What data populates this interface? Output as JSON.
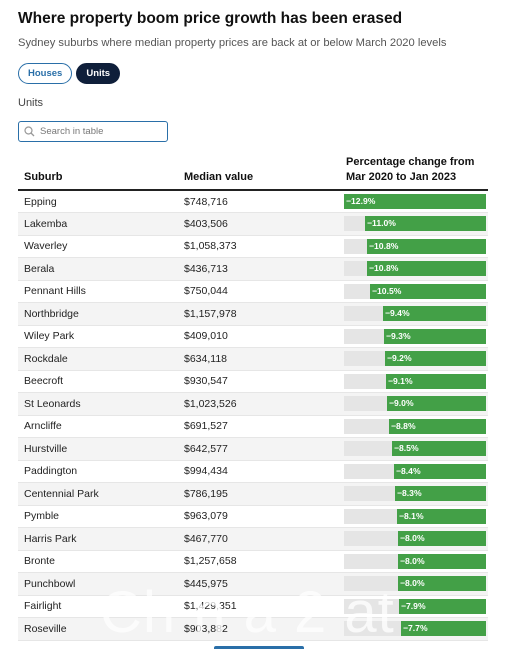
{
  "title": "Where property boom price growth has been erased",
  "subtitle": "Sydney suburbs where median property prices are back at or below March 2020 levels",
  "toggles": [
    {
      "label": "Houses",
      "active": false
    },
    {
      "label": "Units",
      "active": true
    }
  ],
  "section_label": "Units",
  "search": {
    "placeholder": "Search in table",
    "value": "",
    "icon": "search-icon"
  },
  "table": {
    "headers": {
      "suburb": "Suburb",
      "median": "Median value",
      "change": "Percentage change from Mar 2020 to Jan 2023"
    },
    "rows": [
      {
        "suburb": "Epping",
        "median": "$748,716",
        "change_label": "−12.9%",
        "change": -12.9
      },
      {
        "suburb": "Lakemba",
        "median": "$403,506",
        "change_label": "−11.0%",
        "change": -11.0
      },
      {
        "suburb": "Waverley",
        "median": "$1,058,373",
        "change_label": "−10.8%",
        "change": -10.8
      },
      {
        "suburb": "Berala",
        "median": "$436,713",
        "change_label": "−10.8%",
        "change": -10.8
      },
      {
        "suburb": "Pennant Hills",
        "median": "$750,044",
        "change_label": "−10.5%",
        "change": -10.5
      },
      {
        "suburb": "Northbridge",
        "median": "$1,157,978",
        "change_label": "−9.4%",
        "change": -9.4
      },
      {
        "suburb": "Wiley Park",
        "median": "$409,010",
        "change_label": "−9.3%",
        "change": -9.3
      },
      {
        "suburb": "Rockdale",
        "median": "$634,118",
        "change_label": "−9.2%",
        "change": -9.2
      },
      {
        "suburb": "Beecroft",
        "median": "$930,547",
        "change_label": "−9.1%",
        "change": -9.1
      },
      {
        "suburb": "St Leonards",
        "median": "$1,023,526",
        "change_label": "−9.0%",
        "change": -9.0
      },
      {
        "suburb": "Arncliffe",
        "median": "$691,527",
        "change_label": "−8.8%",
        "change": -8.8
      },
      {
        "suburb": "Hurstville",
        "median": "$642,577",
        "change_label": "−8.5%",
        "change": -8.5
      },
      {
        "suburb": "Paddington",
        "median": "$994,434",
        "change_label": "−8.4%",
        "change": -8.4
      },
      {
        "suburb": "Centennial Park",
        "median": "$786,195",
        "change_label": "−8.3%",
        "change": -8.3
      },
      {
        "suburb": "Pymble",
        "median": "$963,079",
        "change_label": "−8.1%",
        "change": -8.1
      },
      {
        "suburb": "Harris Park",
        "median": "$467,770",
        "change_label": "−8.0%",
        "change": -8.0
      },
      {
        "suburb": "Bronte",
        "median": "$1,257,658",
        "change_label": "−8.0%",
        "change": -8.0
      },
      {
        "suburb": "Punchbowl",
        "median": "$445,975",
        "change_label": "−8.0%",
        "change": -8.0
      },
      {
        "suburb": "Fairlight",
        "median": "$1,429,351",
        "change_label": "−7.9%",
        "change": -7.9
      },
      {
        "suburb": "Roseville",
        "median": "$903,882",
        "change_label": "−7.7%",
        "change": -7.7
      }
    ],
    "bar_scale_max": 12.9
  },
  "colors": {
    "bar": "#43a047",
    "bar_track": "#e5e5e5",
    "accent": "#2a6fa8",
    "active_toggle": "#0f1f3a"
  }
}
